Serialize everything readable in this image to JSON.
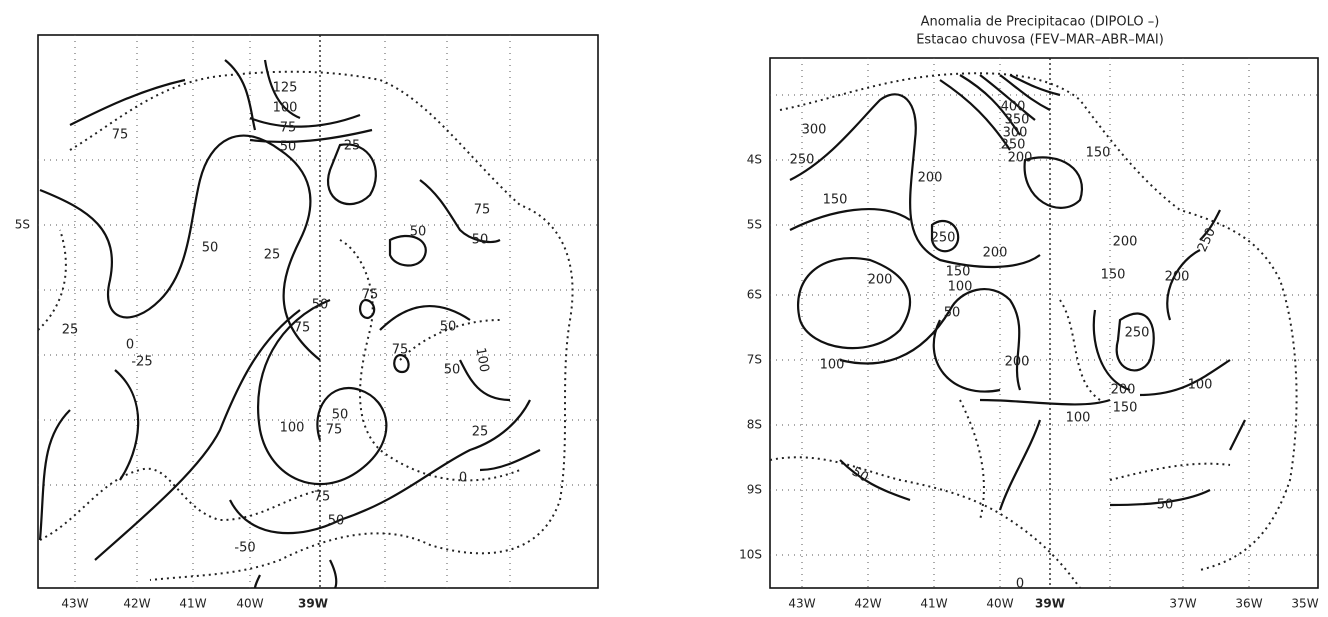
{
  "left_map": {
    "x_labels": [
      "43W",
      "42W",
      "41W",
      "40W",
      "39W"
    ],
    "y_labels": [
      "5S"
    ],
    "contour_labels": [
      125,
      100,
      75,
      50,
      75,
      25,
      75,
      50,
      50,
      50,
      25,
      75,
      50,
      50,
      25,
      0,
      -25,
      75,
      50,
      100,
      75,
      50,
      100,
      75,
      25,
      0,
      75,
      50,
      -50
    ]
  },
  "right_map": {
    "title": "Anomalia de Precipitacao (DIPOLO –)",
    "subtitle": "Estacao chuvosa (FEV–MAR–ABR–MAI)",
    "x_labels": [
      "43W",
      "42W",
      "41W",
      "40W",
      "39W",
      "37W",
      "36W",
      "35W"
    ],
    "y_labels": [
      "4S",
      "5S",
      "6S",
      "7S",
      "8S",
      "9S",
      "10S"
    ],
    "contour_labels": [
      400,
      350,
      300,
      250,
      200,
      150,
      300,
      250,
      200,
      150,
      250,
      200,
      200,
      250,
      150,
      100,
      200,
      150,
      200,
      50,
      250,
      100,
      200,
      100,
      200,
      150,
      100,
      50,
      50,
      0
    ]
  }
}
